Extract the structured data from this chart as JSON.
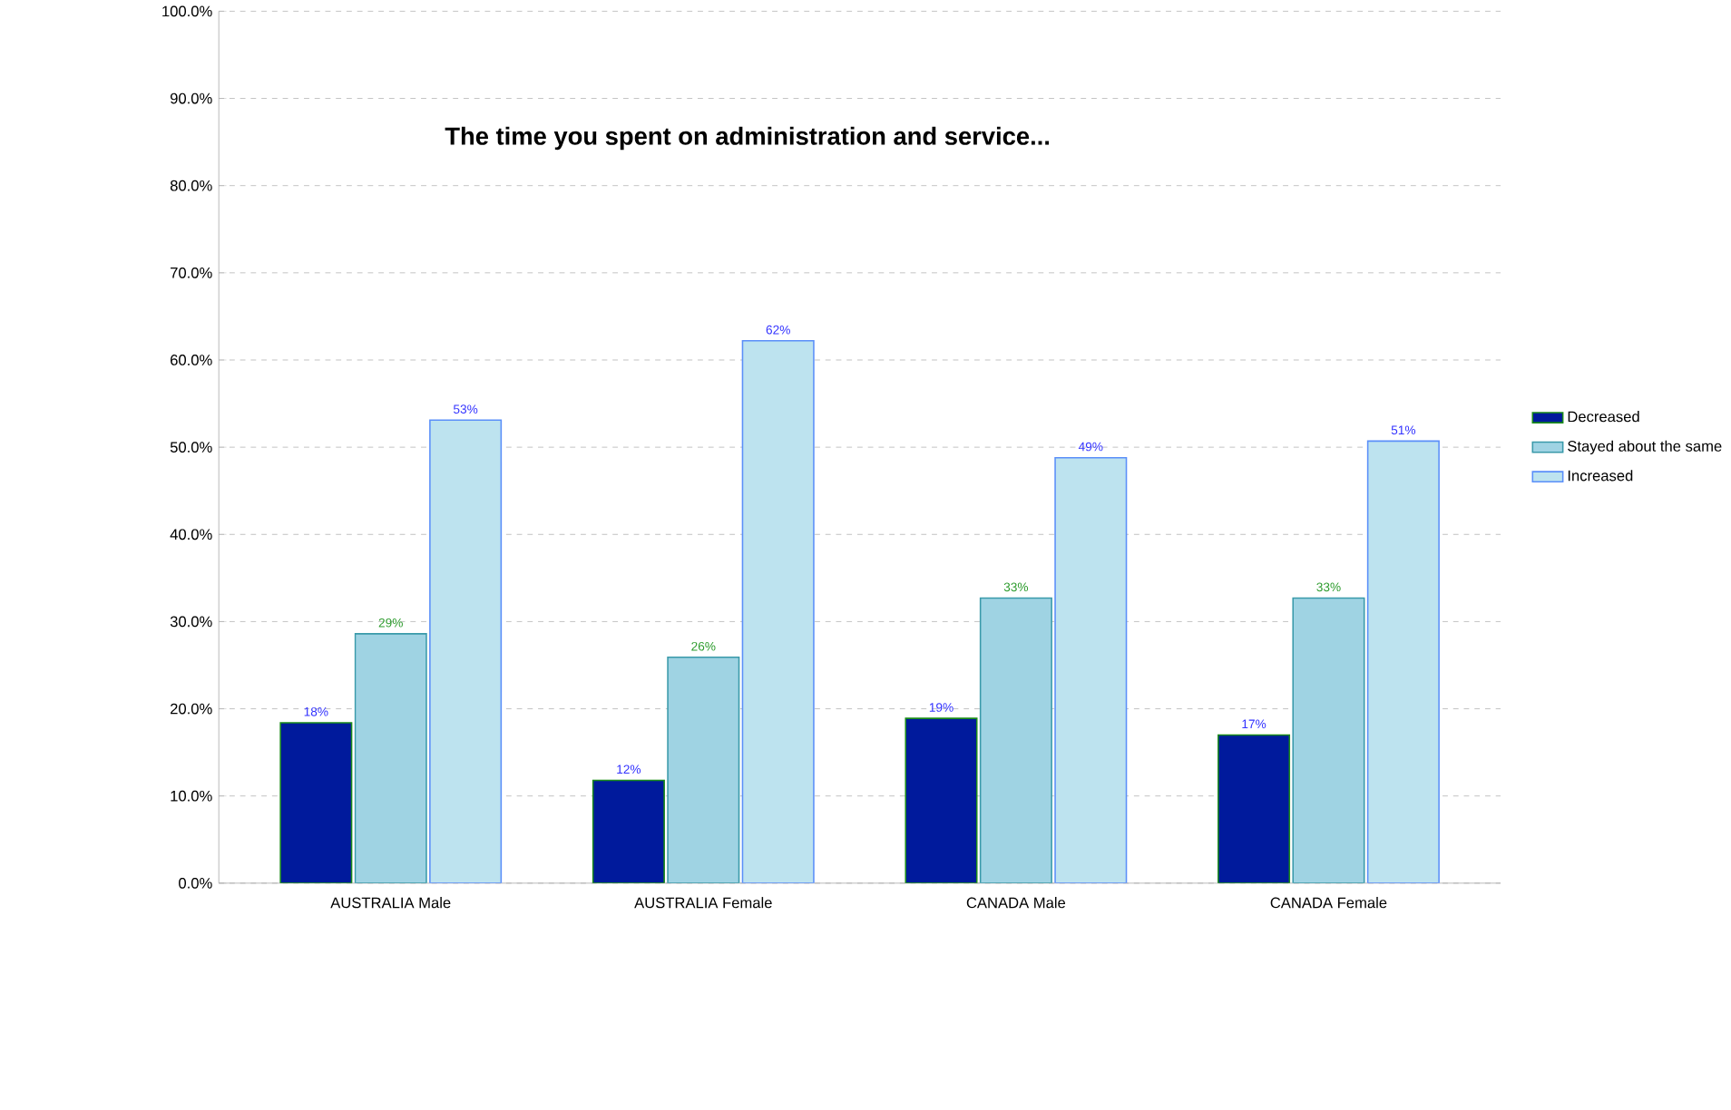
{
  "chart_data": {
    "type": "bar",
    "title": "The time you spent on administration and service...",
    "categories": [
      "AUSTRALIA  Male",
      "AUSTRALIA  Female",
      "CANADA  Male",
      "CANADA  Female"
    ],
    "series": [
      {
        "name": "Decreased",
        "color": "#001a9c",
        "values": [
          18.4,
          11.8,
          18.9,
          17.0
        ],
        "value_labels": [
          "18%",
          "12%",
          "19%",
          "17%"
        ]
      },
      {
        "name": "Stayed about the same",
        "color": "#9fd3e3",
        "values": [
          28.6,
          25.9,
          32.7,
          32.7
        ],
        "value_labels": [
          "29%",
          "26%",
          "33%",
          "33%"
        ]
      },
      {
        "name": "Increased",
        "color": "#bde3ef",
        "values": [
          53.1,
          62.2,
          48.8,
          50.7
        ],
        "value_labels": [
          "53%",
          "62%",
          "49%",
          "51%"
        ]
      }
    ],
    "ylim": [
      0,
      100
    ],
    "yticks": [
      {
        "value": 0,
        "label": "0.0%"
      },
      {
        "value": 10,
        "label": "10.0%"
      },
      {
        "value": 20,
        "label": "20.0%"
      },
      {
        "value": 30,
        "label": "30.0%"
      },
      {
        "value": 40,
        "label": "40.0%"
      },
      {
        "value": 50,
        "label": "50.0%"
      },
      {
        "value": 60,
        "label": "60.0%"
      },
      {
        "value": 70,
        "label": "70.0%"
      },
      {
        "value": 80,
        "label": "80.0%"
      },
      {
        "value": 90,
        "label": "90.0%"
      },
      {
        "value": 100,
        "label": "100.0%"
      }
    ],
    "grid": "y",
    "legend": "right"
  }
}
